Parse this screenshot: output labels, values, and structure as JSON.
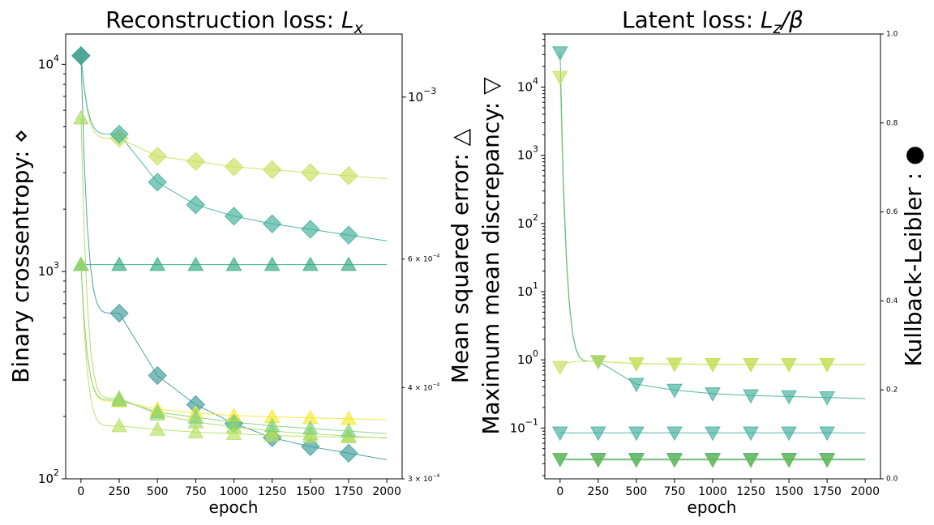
{
  "chart_data": [
    {
      "type": "line",
      "title": "Reconstruction loss: L_x",
      "title_parts": {
        "text": "Reconstruction loss: ",
        "var": "L",
        "sub": "x"
      },
      "xlabel": "epoch",
      "ylabel": "Binary crossentropy: ⋄",
      "ylabel_right": "Mean squared error: △",
      "xlim": [
        -100,
        2100
      ],
      "ylim": [
        100,
        14000
      ],
      "yscale": "log",
      "ylim_right": [
        0.0003,
        0.00122
      ],
      "yscale_right": "log",
      "x_ticks": [
        0,
        250,
        500,
        750,
        1000,
        1250,
        1500,
        1750,
        2000
      ],
      "y_ticks": [
        {
          "value": 100,
          "base": "10",
          "exp": "2"
        },
        {
          "value": 1000,
          "base": "10",
          "exp": "3"
        },
        {
          "value": 10000,
          "base": "10",
          "exp": "4"
        }
      ],
      "y_ticks_right": [
        {
          "value": 0.001,
          "mant": "",
          "base": "10",
          "exp": "−3"
        },
        {
          "value": 0.0006,
          "mant": "6 × ",
          "base": "10",
          "exp": "−4"
        },
        {
          "value": 0.0004,
          "mant": "4 × ",
          "base": "10",
          "exp": "−4"
        },
        {
          "value": 0.0003,
          "mant": "3 × ",
          "base": "10",
          "exp": "−4"
        }
      ],
      "marker_x": [
        0,
        250,
        500,
        750,
        1000,
        1250,
        1500,
        1750
      ],
      "series": [
        {
          "axis": "left",
          "marker": "diamond",
          "color": "#c6e05a",
          "y": [
            11000,
            4400,
            3600,
            3400,
            3200,
            3100,
            3000,
            2900
          ]
        },
        {
          "axis": "left",
          "marker": "diamond",
          "color": "#3fae98",
          "y": [
            11000,
            4600,
            2700,
            2100,
            1850,
            1700,
            1600,
            1500
          ]
        },
        {
          "axis": "left",
          "marker": "diamond",
          "color": "#3a9a96",
          "y": [
            11000,
            630,
            315,
            228,
            185,
            158,
            143,
            133
          ]
        },
        {
          "axis": "left",
          "marker": "triangle-up",
          "color": "#2ea87e",
          "y": [
            1080,
            1080,
            1080,
            1080,
            1080,
            1080,
            1080,
            1080
          ]
        },
        {
          "axis": "left",
          "marker": "triangle-up",
          "color": "#a8d95a",
          "y": [
            5500,
            245,
            205,
            188,
            178,
            170,
            165,
            161
          ]
        },
        {
          "axis": "left",
          "marker": "triangle-up",
          "color": "#f5e92a",
          "y": [
            1080,
            237,
            217,
            208,
            202,
            199,
            197,
            195
          ]
        },
        {
          "axis": "left",
          "marker": "triangle-up",
          "color": "#b5e060",
          "y": [
            1080,
            180,
            173,
            168,
            165,
            162,
            160,
            159
          ]
        },
        {
          "axis": "left",
          "marker": "triangle-up",
          "color": "#7ecf80",
          "y": [
            1080,
            240,
            210,
            198,
            188,
            180,
            175,
            170
          ]
        }
      ]
    },
    {
      "type": "line",
      "title": "Latent loss: L_z/β",
      "title_parts": {
        "text": "Latent loss: ",
        "var": "L",
        "sub": "z",
        "rest": "/β"
      },
      "xlabel": "epoch",
      "ylabel": "Maximum mean discrepancy: ▽",
      "ylabel_right": "Kullback-Leibler : ●",
      "xlim": [
        -100,
        2100
      ],
      "ylim": [
        0.018,
        60000
      ],
      "yscale": "log",
      "ylim_right": [
        0.0,
        1.0
      ],
      "x_ticks": [
        0,
        250,
        500,
        750,
        1000,
        1250,
        1500,
        1750,
        2000
      ],
      "y_ticks": [
        {
          "value": 0.1,
          "base": "10",
          "exp": "−1"
        },
        {
          "value": 1,
          "base": "10",
          "exp": "0"
        },
        {
          "value": 10,
          "base": "10",
          "exp": "1"
        },
        {
          "value": 100,
          "base": "10",
          "exp": "2"
        },
        {
          "value": 1000,
          "base": "10",
          "exp": "3"
        },
        {
          "value": 10000,
          "base": "10",
          "exp": "4"
        }
      ],
      "y_ticks_right": [
        "0.0",
        "0.2",
        "0.4",
        "0.6",
        "0.8",
        "1.0"
      ],
      "marker_x": [
        0,
        250,
        500,
        750,
        1000,
        1250,
        1500,
        1750
      ],
      "series": [
        {
          "axis": "left",
          "marker": "triangle-down",
          "color": "#c6e05a",
          "y": [
            14000,
            0.95,
            0.88,
            0.87,
            0.86,
            0.86,
            0.86,
            0.86
          ]
        },
        {
          "axis": "left",
          "marker": "triangle-down",
          "color": "#3fae98",
          "y": [
            32000,
            0.95,
            0.44,
            0.36,
            0.32,
            0.3,
            0.29,
            0.28
          ]
        },
        {
          "axis": "left",
          "marker": "triangle-down",
          "color": "#c6e05a",
          "y": [
            0.78,
            0.95,
            0.88,
            0.87,
            0.86,
            0.86,
            0.86,
            0.86
          ]
        },
        {
          "axis": "left",
          "marker": "triangle-down",
          "color": "#3fae98",
          "y": [
            0.085,
            0.085,
            0.085,
            0.085,
            0.085,
            0.085,
            0.085,
            0.085
          ]
        },
        {
          "axis": "left",
          "marker": "triangle-down",
          "color": "#3a9a96",
          "y": [
            0.035,
            0.035,
            0.035,
            0.035,
            0.035,
            0.035,
            0.035,
            0.035
          ]
        },
        {
          "axis": "left",
          "marker": "triangle-down",
          "color": "#6cc04a",
          "y": [
            0.035,
            0.034,
            0.034,
            0.034,
            0.034,
            0.034,
            0.034,
            0.034
          ]
        }
      ]
    }
  ]
}
